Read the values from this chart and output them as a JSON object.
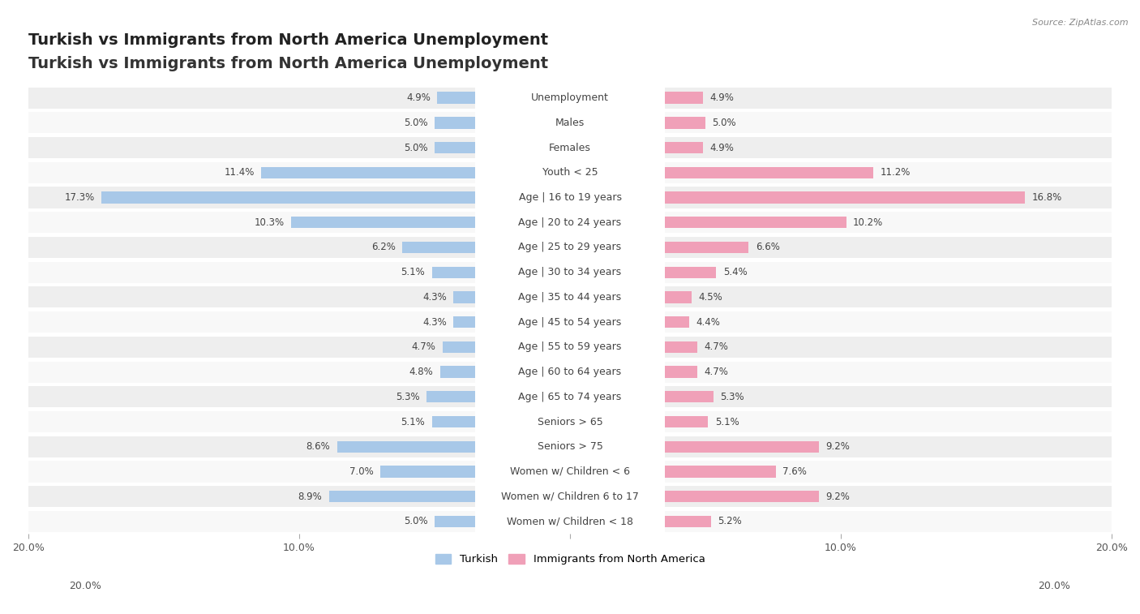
{
  "title": "Turkish vs Immigrants from North America Unemployment",
  "source": "Source: ZipAtlas.com",
  "categories": [
    "Unemployment",
    "Males",
    "Females",
    "Youth < 25",
    "Age | 16 to 19 years",
    "Age | 20 to 24 years",
    "Age | 25 to 29 years",
    "Age | 30 to 34 years",
    "Age | 35 to 44 years",
    "Age | 45 to 54 years",
    "Age | 55 to 59 years",
    "Age | 60 to 64 years",
    "Age | 65 to 74 years",
    "Seniors > 65",
    "Seniors > 75",
    "Women w/ Children < 6",
    "Women w/ Children 6 to 17",
    "Women w/ Children < 18"
  ],
  "turkish": [
    4.9,
    5.0,
    5.0,
    11.4,
    17.3,
    10.3,
    6.2,
    5.1,
    4.3,
    4.3,
    4.7,
    4.8,
    5.3,
    5.1,
    8.6,
    7.0,
    8.9,
    5.0
  ],
  "immigrants": [
    4.9,
    5.0,
    4.9,
    11.2,
    16.8,
    10.2,
    6.6,
    5.4,
    4.5,
    4.4,
    4.7,
    4.7,
    5.3,
    5.1,
    9.2,
    7.6,
    9.2,
    5.2
  ],
  "turkish_color": "#a8c8e8",
  "immigrants_color": "#f0a0b8",
  "turkish_label": "Turkish",
  "immigrants_label": "Immigrants from North America",
  "axis_limit": 20.0,
  "background_color": "#ffffff",
  "row_colors": [
    "#eeeeee",
    "#f8f8f8"
  ],
  "title_fontsize": 14,
  "label_fontsize": 9,
  "value_fontsize": 8.5,
  "tick_label_fontsize": 9
}
